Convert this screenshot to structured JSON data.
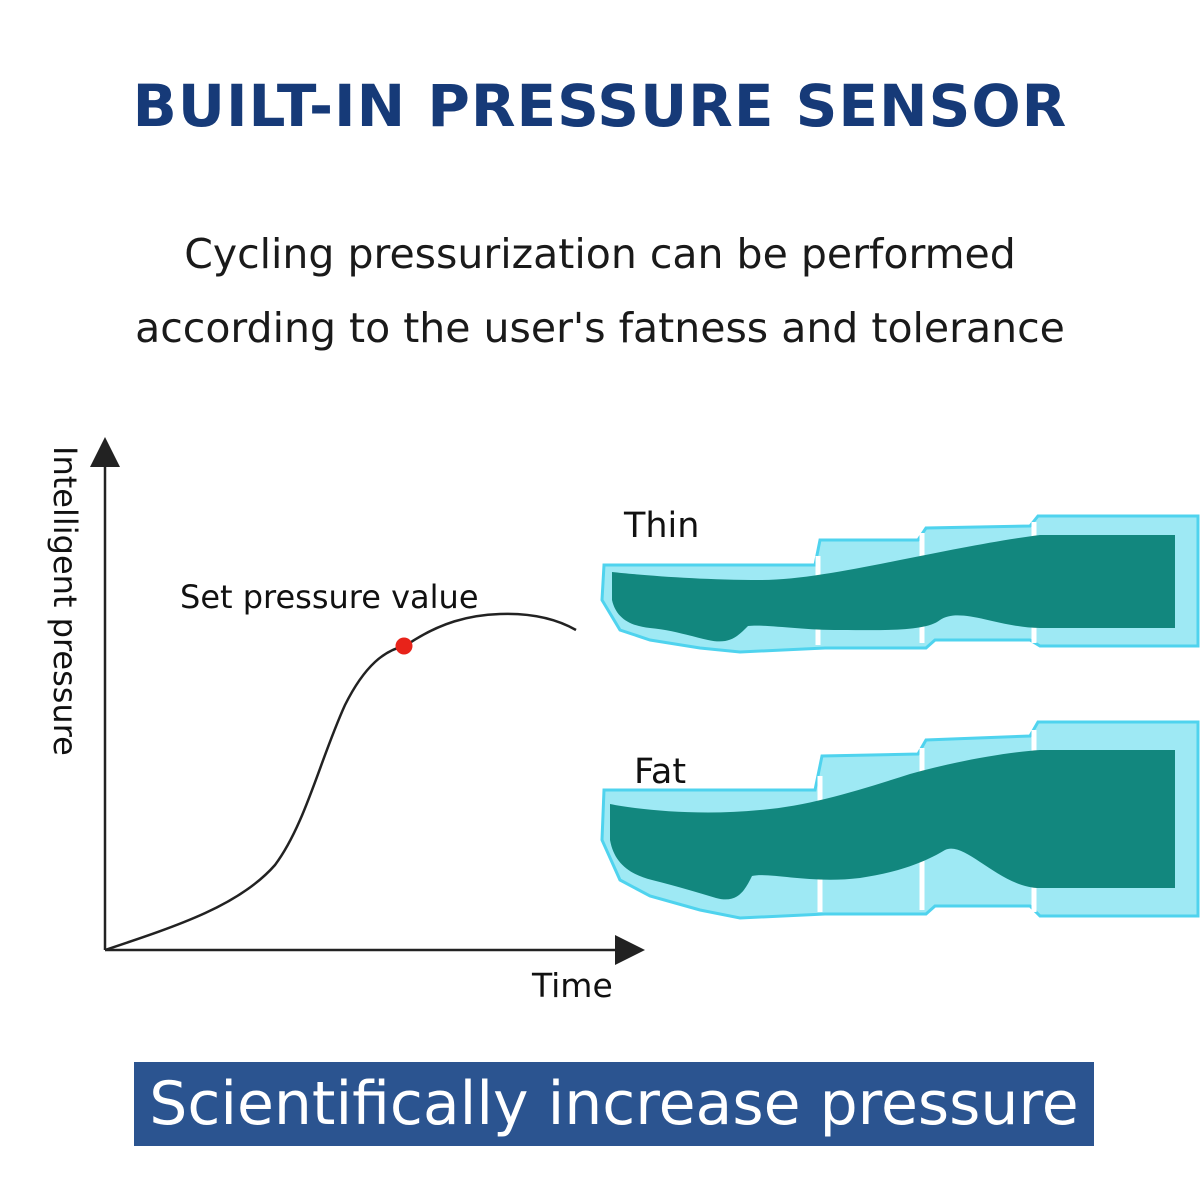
{
  "title": "BUILT-IN PRESSURE SENSOR",
  "subtitle_line1": "Cycling pressurization can be performed",
  "subtitle_line2": "according to the user's fatness and tolerance",
  "chart": {
    "y_axis_label": "Intelligent pressure",
    "x_axis_label": "Time",
    "point_label": "Set pressure value"
  },
  "legs": {
    "thin_label": "Thin",
    "fat_label": "Fat"
  },
  "banner_text": "Scientifically increase pressure",
  "colors": {
    "title": "#163a78",
    "banner_bg": "#2b5490",
    "leg_fill": "#12877e",
    "sleeve_fill": "#9ee9f4",
    "sleeve_edge": "#4fd3ee",
    "point": "#e8231a"
  }
}
